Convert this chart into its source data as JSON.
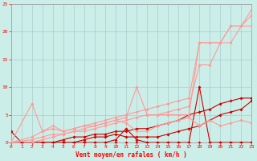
{
  "xlabel": "Vent moyen/en rafales ( km/h )",
  "xlim": [
    0,
    23
  ],
  "ylim": [
    0,
    25
  ],
  "xticks": [
    0,
    1,
    2,
    3,
    4,
    5,
    6,
    7,
    8,
    9,
    10,
    11,
    12,
    13,
    14,
    15,
    16,
    17,
    18,
    19,
    20,
    21,
    22,
    23
  ],
  "yticks": [
    0,
    5,
    10,
    15,
    20,
    25
  ],
  "bg_color": "#cceee8",
  "grid_color": "#aacccc",
  "series": [
    {
      "x": [
        0,
        1,
        2,
        3,
        4,
        5,
        6,
        7,
        8,
        9,
        10,
        11,
        12,
        13,
        14,
        15,
        16,
        17,
        18,
        19,
        20,
        21,
        22,
        23
      ],
      "y": [
        0,
        0,
        0,
        0,
        0,
        0,
        0,
        0,
        0,
        0,
        0,
        0,
        0,
        0,
        0,
        0,
        0,
        0,
        0,
        0,
        0,
        0,
        0,
        0
      ],
      "color": "#cc0000",
      "lw": 0.8,
      "marker": "D",
      "ms": 1.8
    },
    {
      "x": [
        0,
        1,
        2,
        3,
        4,
        5,
        6,
        7,
        8,
        9,
        10,
        11,
        12,
        13,
        14,
        15,
        16,
        17,
        18,
        19,
        20,
        21,
        22,
        23
      ],
      "y": [
        0,
        0,
        0,
        0,
        0,
        0,
        0,
        0,
        0,
        0,
        0.5,
        2.5,
        0.5,
        0,
        0,
        0,
        0,
        0,
        10,
        0,
        0,
        0,
        0,
        0
      ],
      "color": "#cc0000",
      "lw": 0.8,
      "marker": "D",
      "ms": 1.8
    },
    {
      "x": [
        0,
        1,
        2,
        3,
        4,
        5,
        6,
        7,
        8,
        9,
        10,
        11,
        12,
        13,
        14,
        15,
        16,
        17,
        18,
        19,
        20,
        21,
        22,
        23
      ],
      "y": [
        0,
        0,
        0,
        0,
        0,
        0,
        0,
        0.5,
        1,
        1,
        1.5,
        1,
        1,
        1,
        1,
        1.5,
        2,
        2.5,
        3,
        4,
        5,
        5.5,
        6,
        7.5
      ],
      "color": "#cc0000",
      "lw": 0.8,
      "marker": "D",
      "ms": 1.8
    },
    {
      "x": [
        0,
        1,
        2,
        3,
        4,
        5,
        6,
        7,
        8,
        9,
        10,
        11,
        12,
        13,
        14,
        15,
        16,
        17,
        18,
        19,
        20,
        21,
        22,
        23
      ],
      "y": [
        2,
        0,
        0,
        0,
        0,
        0.5,
        1,
        1,
        1.5,
        1.5,
        2,
        2,
        2.5,
        2.5,
        3,
        3.5,
        4,
        5,
        5.5,
        6,
        7,
        7.5,
        8,
        8
      ],
      "color": "#cc0000",
      "lw": 0.8,
      "marker": "D",
      "ms": 1.8
    },
    {
      "x": [
        0,
        2,
        3,
        4,
        5,
        6,
        7,
        8,
        9,
        10,
        11,
        12,
        13,
        14,
        15,
        16,
        17,
        18,
        19,
        20,
        21,
        22,
        23
      ],
      "y": [
        0,
        0.5,
        1,
        1.5,
        1.5,
        2,
        2.5,
        3,
        3.5,
        4,
        4.5,
        10,
        5,
        5,
        5,
        5,
        5,
        18,
        18,
        18,
        21,
        21,
        23
      ],
      "color": "#ff9999",
      "lw": 0.8,
      "marker": "D",
      "ms": 1.8
    },
    {
      "x": [
        0,
        2,
        3,
        4,
        5,
        6,
        7,
        8,
        9,
        10,
        11,
        12,
        13,
        14,
        15,
        16,
        17,
        18,
        19,
        20,
        21,
        22,
        23
      ],
      "y": [
        0,
        7,
        2,
        3,
        2,
        2.5,
        3,
        3,
        3.5,
        4,
        3.5,
        2,
        2,
        3,
        3.5,
        4,
        4.5,
        3,
        4,
        3,
        3.5,
        4,
        3.5
      ],
      "color": "#ff9999",
      "lw": 0.8,
      "marker": "D",
      "ms": 1.8
    },
    {
      "x": [
        0,
        2,
        3,
        4,
        5,
        6,
        7,
        8,
        9,
        10,
        11,
        12,
        13,
        14,
        15,
        16,
        17,
        18,
        19,
        20,
        21,
        22,
        23
      ],
      "y": [
        0,
        1,
        2,
        2.5,
        2,
        2.5,
        3,
        3.5,
        4,
        4.5,
        5,
        5.5,
        6,
        6.5,
        7,
        7.5,
        8,
        18,
        18,
        18,
        21,
        21,
        24
      ],
      "color": "#ff9999",
      "lw": 0.8,
      "marker": "D",
      "ms": 1.8
    },
    {
      "x": [
        0,
        2,
        3,
        4,
        5,
        6,
        7,
        8,
        9,
        10,
        11,
        12,
        13,
        14,
        15,
        16,
        17,
        18,
        19,
        20,
        21,
        22,
        23
      ],
      "y": [
        0,
        0,
        0.5,
        1,
        1.5,
        2,
        2,
        2.5,
        3,
        3.5,
        4,
        4.5,
        5,
        5,
        5.5,
        6,
        6.5,
        14,
        14,
        18,
        18,
        21,
        21
      ],
      "color": "#ff9999",
      "lw": 0.8,
      "marker": "D",
      "ms": 1.8
    }
  ]
}
